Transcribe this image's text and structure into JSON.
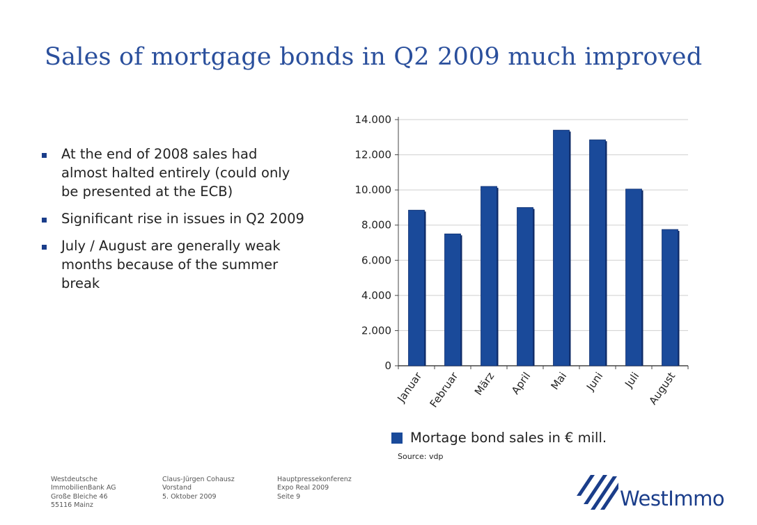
{
  "title": "Sales of mortgage bonds in Q2 2009 much improved",
  "bullets": [
    "At the end of 2008 sales had almost halted entirely (could only be presented at the ECB)",
    "Significant rise in issues in Q2 2009",
    "July / August are generally weak months because of the summer break"
  ],
  "chart_data": {
    "type": "bar",
    "categories": [
      "Januar",
      "Februar",
      "März",
      "April",
      "Mai",
      "Juni",
      "Juli",
      "August"
    ],
    "series": [
      {
        "name": "Mortage bond sales in € mill.",
        "values": [
          8850,
          7500,
          10200,
          9000,
          13400,
          12850,
          10050,
          7750
        ]
      }
    ],
    "yticks": [
      "0",
      "2.000",
      "4.000",
      "6.000",
      "8.000",
      "10.000",
      "12.000",
      "14.000"
    ],
    "ylim": [
      0,
      14000
    ],
    "grid": true,
    "bar_color": "#1a4a9a",
    "legend_position": "bottom"
  },
  "legend": {
    "label": "Mortage bond sales in € mill."
  },
  "source": "Source: vdp",
  "footer": {
    "col1": [
      "Westdeutsche",
      "ImmobilienBank AG",
      "Große Bleiche 46",
      "55116 Mainz"
    ],
    "col2": [
      "Claus-Jürgen Cohausz",
      "Vorstand",
      "5. Oktober 2009"
    ],
    "col3": [
      "Hauptpressekonferenz",
      "Expo Real 2009",
      "Seite 9"
    ]
  },
  "logo": {
    "text": "WestImmo"
  },
  "colors": {
    "brand": "#1a3d8a",
    "title": "#2a4f9c"
  }
}
